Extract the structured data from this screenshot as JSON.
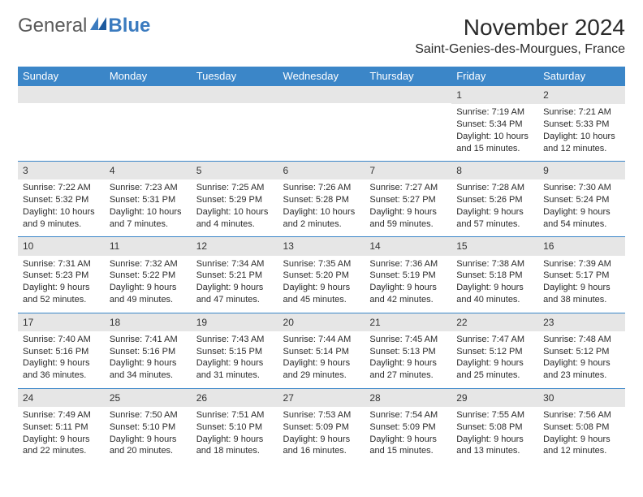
{
  "logo": {
    "text1": "General",
    "text2": "Blue"
  },
  "title": "November 2024",
  "location": "Saint-Genies-des-Mourgues, France",
  "colors": {
    "header_bg": "#3b86c8",
    "header_fg": "#ffffff",
    "daynum_bg": "#e6e6e6",
    "row_border": "#3b86c8",
    "logo_blue": "#3b7bbf",
    "text": "#2b2b2b",
    "page_bg": "#ffffff"
  },
  "typography": {
    "title_fontsize": 28,
    "location_fontsize": 16,
    "weekday_fontsize": 13,
    "daynum_fontsize": 12,
    "cell_fontsize": 11
  },
  "weekdays": [
    "Sunday",
    "Monday",
    "Tuesday",
    "Wednesday",
    "Thursday",
    "Friday",
    "Saturday"
  ],
  "weeks": [
    [
      {
        "empty": true
      },
      {
        "empty": true
      },
      {
        "empty": true
      },
      {
        "empty": true
      },
      {
        "empty": true
      },
      {
        "num": "1",
        "sunrise": "Sunrise: 7:19 AM",
        "sunset": "Sunset: 5:34 PM",
        "daylight": "Daylight: 10 hours and 15 minutes."
      },
      {
        "num": "2",
        "sunrise": "Sunrise: 7:21 AM",
        "sunset": "Sunset: 5:33 PM",
        "daylight": "Daylight: 10 hours and 12 minutes."
      }
    ],
    [
      {
        "num": "3",
        "sunrise": "Sunrise: 7:22 AM",
        "sunset": "Sunset: 5:32 PM",
        "daylight": "Daylight: 10 hours and 9 minutes."
      },
      {
        "num": "4",
        "sunrise": "Sunrise: 7:23 AM",
        "sunset": "Sunset: 5:31 PM",
        "daylight": "Daylight: 10 hours and 7 minutes."
      },
      {
        "num": "5",
        "sunrise": "Sunrise: 7:25 AM",
        "sunset": "Sunset: 5:29 PM",
        "daylight": "Daylight: 10 hours and 4 minutes."
      },
      {
        "num": "6",
        "sunrise": "Sunrise: 7:26 AM",
        "sunset": "Sunset: 5:28 PM",
        "daylight": "Daylight: 10 hours and 2 minutes."
      },
      {
        "num": "7",
        "sunrise": "Sunrise: 7:27 AM",
        "sunset": "Sunset: 5:27 PM",
        "daylight": "Daylight: 9 hours and 59 minutes."
      },
      {
        "num": "8",
        "sunrise": "Sunrise: 7:28 AM",
        "sunset": "Sunset: 5:26 PM",
        "daylight": "Daylight: 9 hours and 57 minutes."
      },
      {
        "num": "9",
        "sunrise": "Sunrise: 7:30 AM",
        "sunset": "Sunset: 5:24 PM",
        "daylight": "Daylight: 9 hours and 54 minutes."
      }
    ],
    [
      {
        "num": "10",
        "sunrise": "Sunrise: 7:31 AM",
        "sunset": "Sunset: 5:23 PM",
        "daylight": "Daylight: 9 hours and 52 minutes."
      },
      {
        "num": "11",
        "sunrise": "Sunrise: 7:32 AM",
        "sunset": "Sunset: 5:22 PM",
        "daylight": "Daylight: 9 hours and 49 minutes."
      },
      {
        "num": "12",
        "sunrise": "Sunrise: 7:34 AM",
        "sunset": "Sunset: 5:21 PM",
        "daylight": "Daylight: 9 hours and 47 minutes."
      },
      {
        "num": "13",
        "sunrise": "Sunrise: 7:35 AM",
        "sunset": "Sunset: 5:20 PM",
        "daylight": "Daylight: 9 hours and 45 minutes."
      },
      {
        "num": "14",
        "sunrise": "Sunrise: 7:36 AM",
        "sunset": "Sunset: 5:19 PM",
        "daylight": "Daylight: 9 hours and 42 minutes."
      },
      {
        "num": "15",
        "sunrise": "Sunrise: 7:38 AM",
        "sunset": "Sunset: 5:18 PM",
        "daylight": "Daylight: 9 hours and 40 minutes."
      },
      {
        "num": "16",
        "sunrise": "Sunrise: 7:39 AM",
        "sunset": "Sunset: 5:17 PM",
        "daylight": "Daylight: 9 hours and 38 minutes."
      }
    ],
    [
      {
        "num": "17",
        "sunrise": "Sunrise: 7:40 AM",
        "sunset": "Sunset: 5:16 PM",
        "daylight": "Daylight: 9 hours and 36 minutes."
      },
      {
        "num": "18",
        "sunrise": "Sunrise: 7:41 AM",
        "sunset": "Sunset: 5:16 PM",
        "daylight": "Daylight: 9 hours and 34 minutes."
      },
      {
        "num": "19",
        "sunrise": "Sunrise: 7:43 AM",
        "sunset": "Sunset: 5:15 PM",
        "daylight": "Daylight: 9 hours and 31 minutes."
      },
      {
        "num": "20",
        "sunrise": "Sunrise: 7:44 AM",
        "sunset": "Sunset: 5:14 PM",
        "daylight": "Daylight: 9 hours and 29 minutes."
      },
      {
        "num": "21",
        "sunrise": "Sunrise: 7:45 AM",
        "sunset": "Sunset: 5:13 PM",
        "daylight": "Daylight: 9 hours and 27 minutes."
      },
      {
        "num": "22",
        "sunrise": "Sunrise: 7:47 AM",
        "sunset": "Sunset: 5:12 PM",
        "daylight": "Daylight: 9 hours and 25 minutes."
      },
      {
        "num": "23",
        "sunrise": "Sunrise: 7:48 AM",
        "sunset": "Sunset: 5:12 PM",
        "daylight": "Daylight: 9 hours and 23 minutes."
      }
    ],
    [
      {
        "num": "24",
        "sunrise": "Sunrise: 7:49 AM",
        "sunset": "Sunset: 5:11 PM",
        "daylight": "Daylight: 9 hours and 22 minutes."
      },
      {
        "num": "25",
        "sunrise": "Sunrise: 7:50 AM",
        "sunset": "Sunset: 5:10 PM",
        "daylight": "Daylight: 9 hours and 20 minutes."
      },
      {
        "num": "26",
        "sunrise": "Sunrise: 7:51 AM",
        "sunset": "Sunset: 5:10 PM",
        "daylight": "Daylight: 9 hours and 18 minutes."
      },
      {
        "num": "27",
        "sunrise": "Sunrise: 7:53 AM",
        "sunset": "Sunset: 5:09 PM",
        "daylight": "Daylight: 9 hours and 16 minutes."
      },
      {
        "num": "28",
        "sunrise": "Sunrise: 7:54 AM",
        "sunset": "Sunset: 5:09 PM",
        "daylight": "Daylight: 9 hours and 15 minutes."
      },
      {
        "num": "29",
        "sunrise": "Sunrise: 7:55 AM",
        "sunset": "Sunset: 5:08 PM",
        "daylight": "Daylight: 9 hours and 13 minutes."
      },
      {
        "num": "30",
        "sunrise": "Sunrise: 7:56 AM",
        "sunset": "Sunset: 5:08 PM",
        "daylight": "Daylight: 9 hours and 12 minutes."
      }
    ]
  ]
}
